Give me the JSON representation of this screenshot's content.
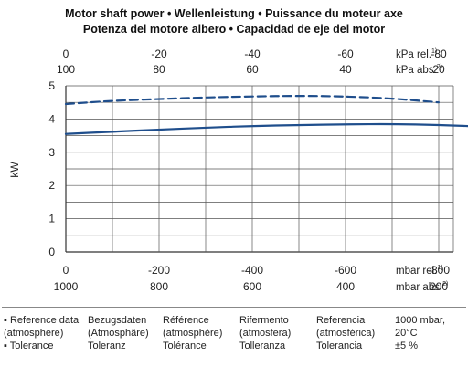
{
  "titles": {
    "line1": "Motor shaft power • Wellenleistung • Puissance du moteur axe",
    "line2": "Potenza del motore albero • Capacidad de eje del motor"
  },
  "chart_data": {
    "type": "line",
    "ylabel": "kW",
    "ylim": [
      0,
      5
    ],
    "y_ticks": [
      "0",
      "1",
      "2",
      "3",
      "4",
      "5"
    ],
    "xlim": [
      0,
      -800
    ],
    "top_axis": {
      "row1": {
        "ticks": [
          "0",
          "-20",
          "-40",
          "-60",
          "-80"
        ],
        "unit": "kPa rel.",
        "note": "1)"
      },
      "row2": {
        "ticks": [
          "100",
          "80",
          "60",
          "40",
          "20"
        ],
        "unit": "kPa abs.",
        "note": "2)"
      }
    },
    "bottom_axis": {
      "row1": {
        "ticks": [
          "0",
          "-200",
          "-400",
          "-600",
          "-800"
        ],
        "unit": "mbar rel.",
        "note": "1)"
      },
      "row2": {
        "ticks": [
          "1000",
          "800",
          "600",
          "400",
          "200"
        ],
        "unit": "mbar abs.",
        "note": "2)"
      }
    },
    "series": [
      {
        "style": "dashed",
        "color": "#1f4e8c",
        "x": [
          0,
          -100,
          -200,
          -300,
          -400,
          -500,
          -600,
          -700,
          -800
        ],
        "y": [
          4.45,
          4.55,
          4.6,
          4.65,
          4.68,
          4.7,
          4.68,
          4.62,
          4.5
        ]
      },
      {
        "style": "solid",
        "color": "#1f4e8c",
        "x": [
          0,
          -100,
          -200,
          -300,
          -400,
          -500,
          -600,
          -700,
          -800,
          -900
        ],
        "y": [
          3.55,
          3.62,
          3.68,
          3.74,
          3.79,
          3.82,
          3.84,
          3.85,
          3.82,
          3.77
        ]
      }
    ]
  },
  "legend": {
    "rows": [
      [
        "▪ Reference data",
        "Bezugsdaten",
        "Référence",
        "Rifermento",
        "Referencia",
        "1000 mbar,"
      ],
      [
        "(atmosphere)",
        "(Atmosphäre)",
        "(atmosphère)",
        "(atmosfera)",
        "(atmosférica)",
        "20°C"
      ],
      [
        "▪ Tolerance",
        "Toleranz",
        "Tolérance",
        "Tolleranza",
        "Tolerancia",
        "±5 %"
      ]
    ]
  }
}
